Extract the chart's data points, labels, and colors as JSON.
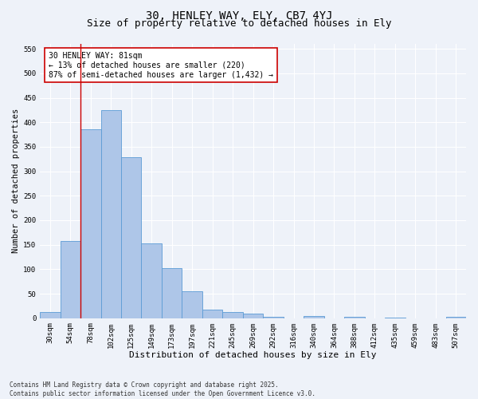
{
  "title1": "30, HENLEY WAY, ELY, CB7 4YJ",
  "title2": "Size of property relative to detached houses in Ely",
  "xlabel": "Distribution of detached houses by size in Ely",
  "ylabel": "Number of detached properties",
  "categories": [
    "30sqm",
    "54sqm",
    "78sqm",
    "102sqm",
    "125sqm",
    "149sqm",
    "173sqm",
    "197sqm",
    "221sqm",
    "245sqm",
    "269sqm",
    "292sqm",
    "316sqm",
    "340sqm",
    "364sqm",
    "388sqm",
    "412sqm",
    "435sqm",
    "459sqm",
    "483sqm",
    "507sqm"
  ],
  "values": [
    12,
    157,
    385,
    425,
    328,
    153,
    103,
    55,
    18,
    13,
    10,
    3,
    0,
    4,
    0,
    2,
    0,
    1,
    0,
    0,
    3
  ],
  "bar_color": "#aec6e8",
  "bar_edge_color": "#5b9bd5",
  "background_color": "#eef2f9",
  "grid_color": "#ffffff",
  "annotation_text": "30 HENLEY WAY: 81sqm\n← 13% of detached houses are smaller (220)\n87% of semi-detached houses are larger (1,432) →",
  "annotation_box_color": "#ffffff",
  "annotation_box_edge": "#cc0000",
  "vline_x": 1.5,
  "vline_color": "#cc0000",
  "ylim": [
    0,
    560
  ],
  "yticks": [
    0,
    50,
    100,
    150,
    200,
    250,
    300,
    350,
    400,
    450,
    500,
    550
  ],
  "footnote": "Contains HM Land Registry data © Crown copyright and database right 2025.\nContains public sector information licensed under the Open Government Licence v3.0.",
  "title1_fontsize": 10,
  "title2_fontsize": 9,
  "xlabel_fontsize": 8,
  "ylabel_fontsize": 7.5,
  "tick_fontsize": 6.5,
  "annotation_fontsize": 7,
  "footnote_fontsize": 5.5
}
